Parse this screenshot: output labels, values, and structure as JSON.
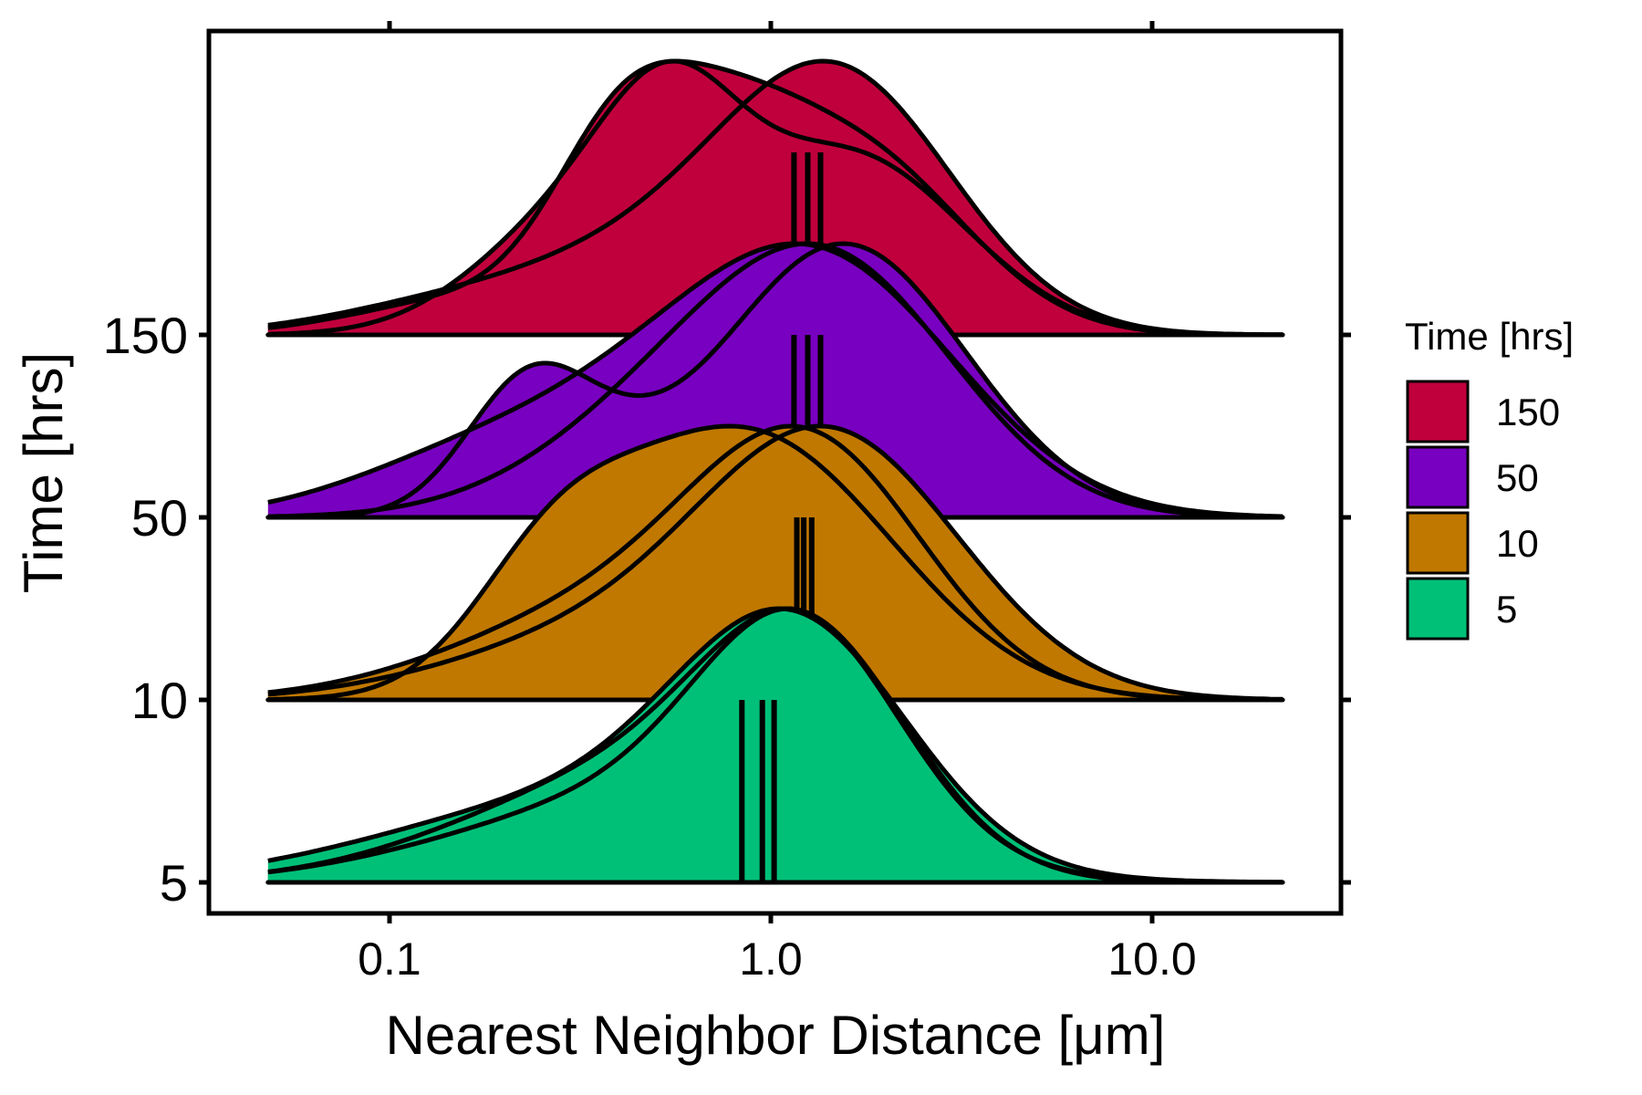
{
  "chart_data": {
    "type": "ridgeline-density",
    "x_scale": "log10",
    "xlabel": "Nearest Neighbor Distance [μm]",
    "ylabel": "Time [hrs]",
    "xlim": [
      0.035,
      33
    ],
    "x_ticks": [
      {
        "value": 0.1,
        "label": "0.1"
      },
      {
        "value": 1.0,
        "label": "1.0"
      },
      {
        "value": 10.0,
        "label": "10.0"
      }
    ],
    "y_categories": [
      "5",
      "10",
      "50",
      "150"
    ],
    "legend": {
      "title": "Time [hrs]",
      "position": "right",
      "entries": [
        {
          "label": "150",
          "color": "#c0003c"
        },
        {
          "label": "50",
          "color": "#7800c0"
        },
        {
          "label": "10",
          "color": "#c07800"
        },
        {
          "label": "5",
          "color": "#00c078"
        }
      ]
    },
    "x_range_drawn": [
      0.048,
      22
    ],
    "ridge_height_relative_to_spacing": 1.5,
    "groups": [
      {
        "time": "5",
        "color": "#00c078",
        "replicates": [
          {
            "median": 0.84,
            "peaks": [
              {
                "x": 1.15,
                "h": 1.0,
                "w": 0.3
              },
              {
                "x": 0.45,
                "h": 0.32,
                "w": 0.5
              },
              {
                "x": 0.16,
                "h": 0.1,
                "w": 0.45
              }
            ]
          },
          {
            "median": 0.95,
            "peaks": [
              {
                "x": 1.2,
                "h": 0.96,
                "w": 0.26
              },
              {
                "x": 0.6,
                "h": 0.38,
                "w": 0.45
              },
              {
                "x": 0.18,
                "h": 0.08,
                "w": 0.4
              }
            ]
          },
          {
            "median": 1.02,
            "peaks": [
              {
                "x": 1.25,
                "h": 0.92,
                "w": 0.27
              },
              {
                "x": 0.5,
                "h": 0.4,
                "w": 0.4
              },
              {
                "x": 0.2,
                "h": 0.1,
                "w": 0.4
              }
            ]
          }
        ]
      },
      {
        "time": "10",
        "color": "#c07800",
        "replicates": [
          {
            "median": 1.17,
            "peaks": [
              {
                "x": 1.1,
                "h": 0.7,
                "w": 0.34
              },
              {
                "x": 0.26,
                "h": 0.31,
                "w": 0.2
              },
              {
                "x": 0.5,
                "h": 0.35,
                "w": 0.3
              }
            ]
          },
          {
            "median": 1.22,
            "peaks": [
              {
                "x": 1.3,
                "h": 0.92,
                "w": 0.3
              },
              {
                "x": 0.55,
                "h": 0.38,
                "w": 0.4
              },
              {
                "x": 0.2,
                "h": 0.1,
                "w": 0.35
              }
            ]
          },
          {
            "median": 1.28,
            "peaks": [
              {
                "x": 1.45,
                "h": 0.8,
                "w": 0.34
              },
              {
                "x": 0.35,
                "h": 0.18,
                "w": 0.4
              }
            ]
          }
        ]
      },
      {
        "time": "50",
        "color": "#7800c0",
        "replicates": [
          {
            "median": 1.15,
            "peaks": [
              {
                "x": 1.4,
                "h": 0.88,
                "w": 0.36
              },
              {
                "x": 0.42,
                "h": 0.36,
                "w": 0.4
              },
              {
                "x": 0.13,
                "h": 0.1,
                "w": 0.3
              }
            ]
          },
          {
            "median": 1.25,
            "peaks": [
              {
                "x": 1.55,
                "h": 0.96,
                "w": 0.32
              },
              {
                "x": 0.28,
                "h": 0.28,
                "w": 0.2
              },
              {
                "x": 0.22,
                "h": 0.24,
                "w": 0.15
              }
            ]
          },
          {
            "median": 1.35,
            "peaks": [
              {
                "x": 1.55,
                "h": 0.98,
                "w": 0.32
              },
              {
                "x": 0.6,
                "h": 0.5,
                "w": 0.35
              }
            ]
          }
        ]
      },
      {
        "time": "150",
        "color": "#c0003c",
        "replicates": [
          {
            "median": 1.15,
            "peaks": [
              {
                "x": 1.7,
                "h": 0.95,
                "w": 0.28
              },
              {
                "x": 0.4,
                "h": 0.88,
                "w": 0.18
              },
              {
                "x": 0.75,
                "h": 0.7,
                "w": 0.2
              },
              {
                "x": 0.17,
                "h": 0.2,
                "w": 0.3
              }
            ]
          },
          {
            "median": 1.25,
            "peaks": [
              {
                "x": 1.6,
                "h": 0.9,
                "w": 0.3
              },
              {
                "x": 0.55,
                "h": 0.78,
                "w": 0.18
              },
              {
                "x": 0.3,
                "h": 0.55,
                "w": 0.25
              }
            ]
          },
          {
            "median": 1.35,
            "peaks": [
              {
                "x": 1.55,
                "h": 0.78,
                "w": 0.3
              },
              {
                "x": 0.55,
                "h": 0.3,
                "w": 0.4
              },
              {
                "x": 0.12,
                "h": 0.06,
                "w": 0.3
              }
            ]
          }
        ]
      }
    ]
  }
}
